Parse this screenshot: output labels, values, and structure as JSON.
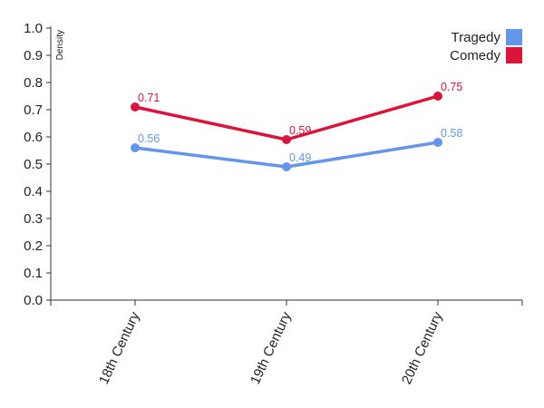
{
  "chart_data": {
    "type": "line",
    "categories": [
      "18th Century",
      "19th Century",
      "20th Century"
    ],
    "series": [
      {
        "name": "Tragedy",
        "color": "#6495ED",
        "values": [
          0.56,
          0.49,
          0.58
        ]
      },
      {
        "name": "Comedy",
        "color": "#DC143C",
        "values": [
          0.71,
          0.59,
          0.75
        ]
      }
    ],
    "data_labels": {
      "Tragedy": [
        "0.56",
        "0.49",
        "0.58"
      ],
      "Comedy": [
        "0.71",
        "0.59",
        "0.75"
      ]
    },
    "ylabel": "Density",
    "ylim": [
      0.0,
      1.0
    ],
    "yticks": [
      "0.0",
      "0.1",
      "0.2",
      "0.3",
      "0.4",
      "0.5",
      "0.6",
      "0.7",
      "0.8",
      "0.9",
      "1.0"
    ],
    "legend_position": "top-right",
    "grid": false
  }
}
